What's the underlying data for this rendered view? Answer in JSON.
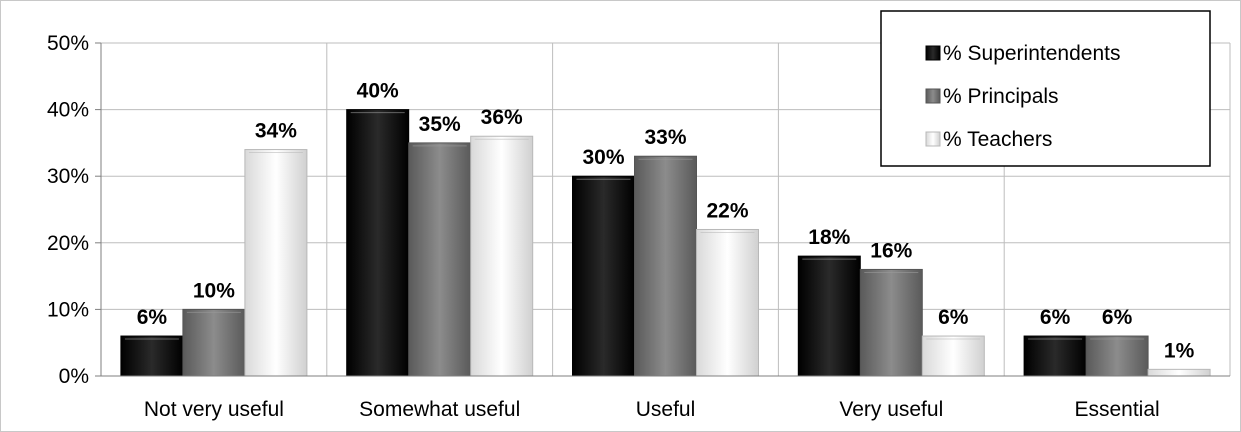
{
  "chart_data": {
    "type": "bar",
    "categories": [
      "Not very useful",
      "Somewhat useful",
      "Useful",
      "Very useful",
      "Essential"
    ],
    "series": [
      {
        "name": "% Superintendents",
        "values": [
          6,
          40,
          30,
          18,
          6
        ],
        "labels": [
          "6%",
          "40%",
          "30%",
          "18%",
          "6%"
        ],
        "color": "#111111"
      },
      {
        "name": "% Principals",
        "values": [
          10,
          35,
          33,
          16,
          6
        ],
        "labels": [
          "10%",
          "35%",
          "33%",
          "16%",
          "6%"
        ],
        "color": "#7f7f7f"
      },
      {
        "name": "% Teachers",
        "values": [
          34,
          36,
          22,
          6,
          1
        ],
        "labels": [
          "34%",
          "36%",
          "22%",
          "6%",
          "1%"
        ],
        "color": "#f4f4f4"
      }
    ],
    "y_ticks": [
      "0%",
      "10%",
      "20%",
      "30%",
      "40%",
      "50%"
    ],
    "ylim": [
      0,
      50
    ],
    "grid": true,
    "legend_position": "top-right"
  }
}
